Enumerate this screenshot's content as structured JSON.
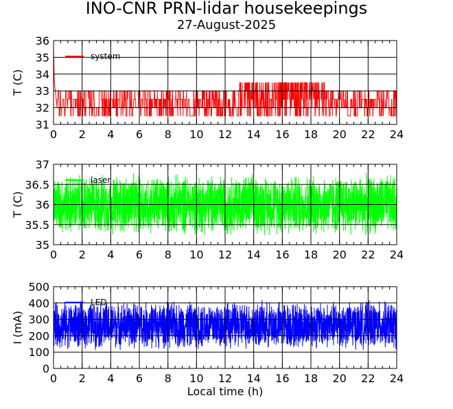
{
  "title": "INO-CNR PRN-lidar housekeepings",
  "subtitle": "27-August-2025",
  "colors": {
    "system": "#ff0000",
    "laser": "#00ff00",
    "led": "#0000ff",
    "grid": "#000000"
  },
  "chart_data": [
    {
      "type": "line",
      "ylabel": "T (C)",
      "xlabel": "",
      "xlim": [
        0,
        24
      ],
      "ylim": [
        31,
        36
      ],
      "xticks": [
        "0",
        "2",
        "4",
        "6",
        "8",
        "10",
        "12",
        "14",
        "16",
        "18",
        "20",
        "22",
        "24"
      ],
      "yticks": [
        "31",
        "32",
        "33",
        "34",
        "35",
        "36"
      ],
      "grid": true,
      "legend": "top-left",
      "series": [
        {
          "name": "system",
          "color": "#ff0000",
          "levels": [
            31.5,
            32,
            32.5,
            33
          ],
          "startup": [
            35.6,
            34.5,
            33.5
          ],
          "start_x": 0.25
        }
      ]
    },
    {
      "type": "line",
      "ylabel": "T (C)",
      "xlabel": "",
      "xlim": [
        0,
        24
      ],
      "ylim": [
        35,
        37
      ],
      "xticks": [
        "0",
        "2",
        "4",
        "6",
        "8",
        "10",
        "12",
        "14",
        "16",
        "18",
        "20",
        "22",
        "24"
      ],
      "yticks": [
        "35",
        "35.5",
        "36",
        "36.5",
        "37"
      ],
      "grid": true,
      "legend": "top-left",
      "series": [
        {
          "name": "laser",
          "color": "#00ff00",
          "range": [
            35.2,
            36.8
          ]
        }
      ]
    },
    {
      "type": "line",
      "ylabel": "I (mA)",
      "xlabel": "Local time (h)",
      "xlim": [
        0,
        24
      ],
      "ylim": [
        0,
        500
      ],
      "xticks": [
        "0",
        "2",
        "4",
        "6",
        "8",
        "10",
        "12",
        "14",
        "16",
        "18",
        "20",
        "22",
        "24"
      ],
      "yticks": [
        "0",
        "100",
        "200",
        "300",
        "400",
        "500"
      ],
      "grid": true,
      "legend": "top-left",
      "series": [
        {
          "name": "LED",
          "color": "#0000ff",
          "range": [
            110,
            420
          ]
        }
      ]
    }
  ]
}
